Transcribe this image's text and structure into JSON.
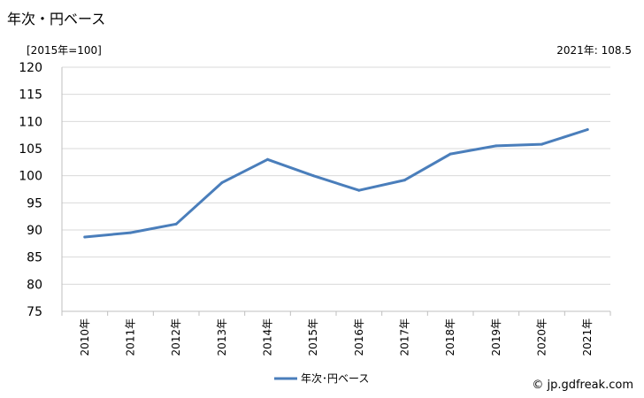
{
  "title": "年次・円ベース",
  "unit_label": "[2015年=100]",
  "latest_label": "2021年: 108.5",
  "credit": "© jp.gdfreak.com",
  "colors": {
    "series": "#4a7ebb",
    "grid": "#d9d9d9",
    "axis": "#bfbfbf"
  },
  "chart_data": {
    "type": "line",
    "categories": [
      "2010年",
      "2011年",
      "2012年",
      "2013年",
      "2014年",
      "2015年",
      "2016年",
      "2017年",
      "2018年",
      "2019年",
      "2020年",
      "2021年"
    ],
    "series": [
      {
        "name": "年次･円ベース",
        "values": [
          88.7,
          89.5,
          91.1,
          98.7,
          103.0,
          100.0,
          97.3,
          99.2,
          104.0,
          105.5,
          105.8,
          108.5
        ]
      }
    ],
    "ylim": [
      75,
      120
    ],
    "yticks": [
      75,
      80,
      85,
      90,
      95,
      100,
      105,
      110,
      115,
      120
    ],
    "grid": true,
    "legend": "bottom"
  }
}
